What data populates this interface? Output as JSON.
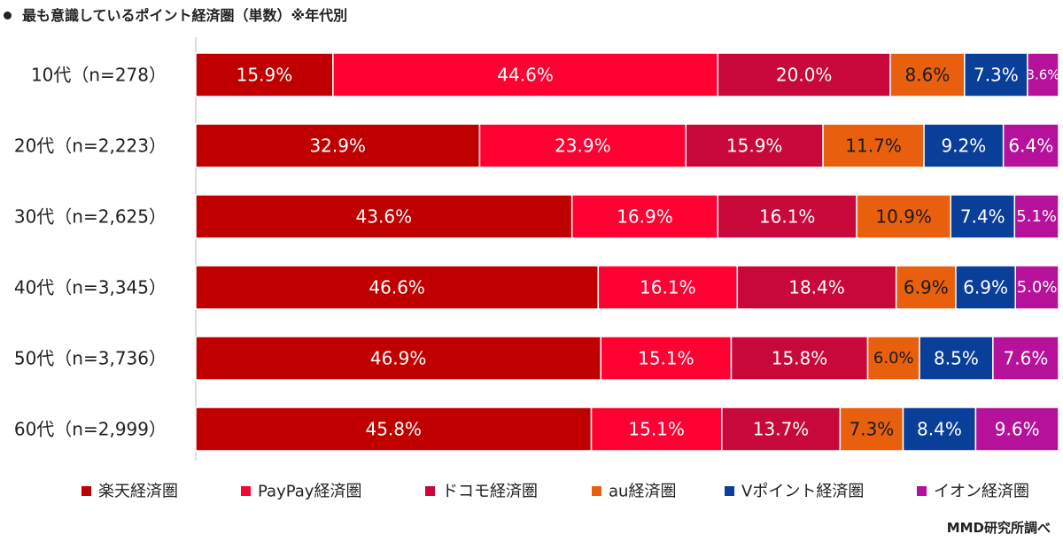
{
  "title": "最も意識しているポイント経済圏（単数）※年代別",
  "source": "MMD研究所調べ",
  "chart_data": {
    "type": "bar",
    "orientation": "horizontal",
    "stacked": "100%",
    "categories": [
      "10代（n=278）",
      "20代（n=2,223）",
      "30代（n=2,625）",
      "40代（n=3,345）",
      "50代（n=3,736）",
      "60代（n=2,999）"
    ],
    "series": [
      {
        "name": "楽天経済圏",
        "color": "#c00000",
        "values": [
          15.9,
          32.9,
          43.6,
          46.6,
          46.9,
          45.8
        ],
        "labels": [
          "15.9%",
          "32.9%",
          "43.6%",
          "46.6%",
          "46.9%",
          "45.8%"
        ]
      },
      {
        "name": "PayPay経済圏",
        "color": "#ff0033",
        "values": [
          44.6,
          23.9,
          16.9,
          16.1,
          15.1,
          15.1
        ],
        "labels": [
          "44.6%",
          "23.9%",
          "16.9%",
          "16.1%",
          "15.1%",
          "15.1%"
        ]
      },
      {
        "name": "ドコモ経済圏",
        "color": "#c8083a",
        "values": [
          20.0,
          15.9,
          16.1,
          18.4,
          15.8,
          13.7
        ],
        "labels": [
          "20.0%",
          "15.9%",
          "16.1%",
          "18.4%",
          "15.8%",
          "13.7%"
        ]
      },
      {
        "name": "au経済圏",
        "color": "#e8600e",
        "values": [
          8.6,
          11.7,
          10.9,
          6.9,
          6.0,
          7.3
        ],
        "labels": [
          "8.6%",
          "11.7%",
          "10.9%",
          "6.9%",
          "6.0%",
          "7.3%"
        ]
      },
      {
        "name": "Vポイント経済圏",
        "color": "#0a3f99",
        "values": [
          7.3,
          9.2,
          7.4,
          6.9,
          8.5,
          8.4
        ],
        "labels": [
          "7.3%",
          "9.2%",
          "7.4%",
          "6.9%",
          "8.5%",
          "8.4%"
        ]
      },
      {
        "name": "イオン経済圏",
        "color": "#b5119b",
        "values": [
          3.6,
          6.4,
          5.1,
          5.0,
          7.6,
          9.6
        ],
        "labels": [
          "3.6%",
          "6.4%",
          "5.1%",
          "5.0%",
          "7.6%",
          "9.6%"
        ]
      }
    ],
    "xlim": [
      0,
      100
    ],
    "legend_position": "bottom",
    "grid": false
  }
}
